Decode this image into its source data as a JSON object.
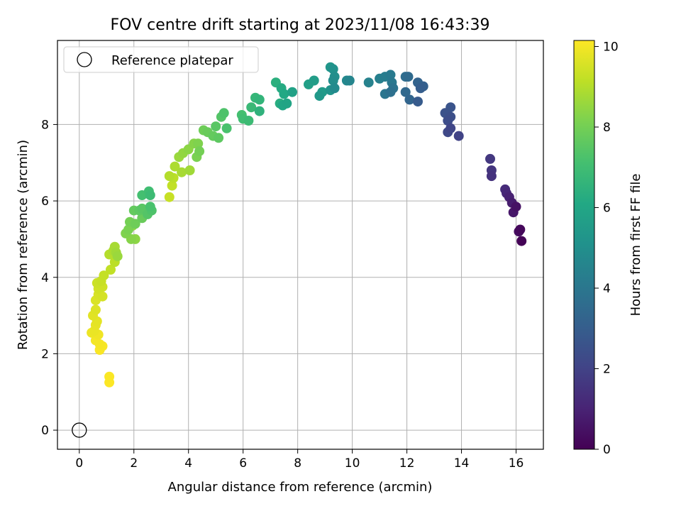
{
  "chart_data": {
    "type": "scatter",
    "title": "FOV centre drift starting at 2023/11/08 16:43:39",
    "xlabel": "Angular distance from reference (arcmin)",
    "ylabel": "Rotation from reference (arcmin)",
    "xlim": [
      -0.8,
      17.0
    ],
    "ylim": [
      -0.5,
      10.2
    ],
    "xticks": [
      0,
      2,
      4,
      6,
      8,
      10,
      12,
      14,
      16
    ],
    "yticks": [
      0,
      2,
      4,
      6,
      8
    ],
    "grid": true,
    "legend": {
      "placement": "top-left",
      "entries": [
        "Reference platepar"
      ]
    },
    "reference_point": {
      "x": 0,
      "y": 0,
      "label": "Reference platepar"
    },
    "colorbar": {
      "label": "Hours from first FF file",
      "range": [
        0,
        10.15
      ],
      "ticks": [
        0,
        2,
        4,
        6,
        8,
        10
      ],
      "colormap": "viridis"
    },
    "series": [
      {
        "values": [
          [
            16.2,
            4.95,
            0.05
          ],
          [
            16.15,
            5.25,
            0.2
          ],
          [
            16.1,
            5.2,
            0.35
          ],
          [
            16.0,
            5.85,
            0.5
          ],
          [
            15.9,
            5.7,
            0.65
          ],
          [
            15.85,
            5.95,
            0.8
          ],
          [
            15.75,
            6.1,
            0.95
          ],
          [
            15.65,
            6.2,
            1.1
          ],
          [
            15.6,
            6.3,
            1.25
          ],
          [
            15.1,
            6.65,
            1.45
          ],
          [
            15.1,
            6.8,
            1.55
          ],
          [
            15.05,
            7.1,
            1.65
          ],
          [
            13.9,
            7.7,
            2.0
          ],
          [
            13.6,
            7.9,
            2.1
          ],
          [
            13.5,
            7.8,
            2.2
          ],
          [
            13.5,
            8.1,
            2.35
          ],
          [
            13.6,
            8.2,
            2.45
          ],
          [
            13.4,
            8.3,
            2.55
          ],
          [
            13.6,
            8.45,
            2.65
          ],
          [
            12.4,
            8.6,
            2.9
          ],
          [
            12.5,
            8.95,
            3.0
          ],
          [
            12.6,
            9.0,
            3.1
          ],
          [
            12.4,
            9.1,
            3.2
          ],
          [
            12.1,
            8.65,
            3.3
          ],
          [
            11.95,
            8.85,
            3.4
          ],
          [
            12.05,
            9.25,
            3.5
          ],
          [
            11.95,
            9.25,
            3.6
          ],
          [
            11.4,
            8.85,
            3.75
          ],
          [
            11.5,
            8.95,
            3.85
          ],
          [
            11.2,
            8.8,
            3.95
          ],
          [
            11.45,
            9.1,
            4.05
          ],
          [
            11.4,
            9.3,
            4.15
          ],
          [
            11.2,
            9.25,
            4.25
          ],
          [
            11.0,
            9.2,
            4.35
          ],
          [
            10.6,
            9.1,
            4.45
          ],
          [
            9.9,
            9.15,
            4.6
          ],
          [
            9.8,
            9.15,
            4.7
          ],
          [
            9.35,
            8.95,
            4.8
          ],
          [
            9.3,
            9.15,
            4.9
          ],
          [
            9.35,
            9.25,
            5.0
          ],
          [
            9.3,
            9.45,
            5.1
          ],
          [
            9.2,
            8.9,
            5.2
          ],
          [
            9.2,
            9.5,
            5.3
          ],
          [
            8.8,
            8.75,
            5.4
          ],
          [
            8.9,
            8.85,
            5.5
          ],
          [
            8.6,
            9.15,
            5.6
          ],
          [
            8.4,
            9.05,
            5.7
          ],
          [
            7.8,
            8.85,
            5.8
          ],
          [
            7.6,
            8.55,
            5.9
          ],
          [
            7.45,
            8.5,
            6.0
          ],
          [
            7.5,
            8.8,
            6.1
          ],
          [
            7.4,
            8.95,
            6.2
          ],
          [
            7.35,
            8.55,
            6.3
          ],
          [
            7.2,
            9.1,
            6.4
          ],
          [
            6.6,
            8.35,
            6.5
          ],
          [
            6.6,
            8.65,
            6.6
          ],
          [
            6.45,
            8.7,
            6.7
          ],
          [
            6.3,
            8.45,
            6.8
          ],
          [
            6.2,
            8.1,
            6.9
          ],
          [
            6.0,
            8.15,
            7.0
          ],
          [
            5.95,
            8.25,
            7.1
          ],
          [
            5.4,
            7.9,
            7.2
          ],
          [
            5.3,
            8.3,
            7.3
          ],
          [
            5.2,
            8.2,
            7.4
          ],
          [
            5.0,
            7.95,
            7.5
          ],
          [
            5.1,
            7.65,
            7.6
          ],
          [
            4.9,
            7.7,
            7.7
          ],
          [
            4.7,
            7.8,
            7.8
          ],
          [
            4.55,
            7.85,
            7.9
          ],
          [
            4.4,
            7.3,
            8.0
          ],
          [
            4.3,
            7.15,
            8.1
          ],
          [
            4.35,
            7.5,
            8.2
          ],
          [
            4.2,
            7.5,
            8.3
          ],
          [
            4.0,
            7.35,
            8.4
          ],
          [
            3.8,
            7.25,
            8.5
          ],
          [
            3.65,
            7.15,
            8.6
          ],
          [
            4.05,
            6.8,
            8.7
          ],
          [
            3.75,
            6.75,
            8.8
          ],
          [
            3.5,
            6.9,
            8.9
          ],
          [
            3.3,
            6.65,
            9.0
          ],
          [
            3.45,
            6.6,
            9.1
          ],
          [
            3.4,
            6.4,
            9.2
          ],
          [
            3.3,
            6.1,
            9.3
          ]
        ],
        "values_note_suppressed": ""
      }
    ],
    "extra_points": [
      [
        2.6,
        6.15,
        6.9
      ],
      [
        2.55,
        6.25,
        7.0
      ],
      [
        2.3,
        6.15,
        7.1
      ],
      [
        2.6,
        5.85,
        7.2
      ],
      [
        2.65,
        5.75,
        7.3
      ],
      [
        2.5,
        5.65,
        7.4
      ],
      [
        2.3,
        5.8,
        7.5
      ],
      [
        2.2,
        5.75,
        7.6
      ],
      [
        2.0,
        5.75,
        7.7
      ],
      [
        2.3,
        5.55,
        7.8
      ],
      [
        2.05,
        5.4,
        7.9
      ],
      [
        1.85,
        5.45,
        8.0
      ],
      [
        1.8,
        5.25,
        8.1
      ],
      [
        1.7,
        5.15,
        8.2
      ],
      [
        1.9,
        5.0,
        8.3
      ],
      [
        2.05,
        5.0,
        8.4
      ],
      [
        1.95,
        5.35,
        8.5
      ],
      [
        1.4,
        4.55,
        8.6
      ],
      [
        1.35,
        4.65,
        8.7
      ],
      [
        1.3,
        4.8,
        8.8
      ],
      [
        1.25,
        4.7,
        8.9
      ],
      [
        1.1,
        4.6,
        9.0
      ],
      [
        1.3,
        4.4,
        9.1
      ],
      [
        1.15,
        4.2,
        9.2
      ],
      [
        0.9,
        4.05,
        9.25
      ],
      [
        0.8,
        3.9,
        9.3
      ],
      [
        0.65,
        3.85,
        9.35
      ],
      [
        0.85,
        3.75,
        9.4
      ],
      [
        0.7,
        3.7,
        9.45
      ],
      [
        0.85,
        3.5,
        9.5
      ],
      [
        0.7,
        3.55,
        9.55
      ],
      [
        0.6,
        3.4,
        9.6
      ],
      [
        0.6,
        3.15,
        9.65
      ],
      [
        0.5,
        3.0,
        9.7
      ],
      [
        0.65,
        2.85,
        9.75
      ],
      [
        0.6,
        2.75,
        9.8
      ],
      [
        0.55,
        2.6,
        9.85
      ],
      [
        0.45,
        2.55,
        9.9
      ],
      [
        0.7,
        2.5,
        9.95
      ],
      [
        0.6,
        2.35,
        10.0
      ],
      [
        0.75,
        2.25,
        10.02
      ],
      [
        0.85,
        2.2,
        10.05
      ],
      [
        0.75,
        2.1,
        10.08
      ],
      [
        1.1,
        1.4,
        10.1
      ],
      [
        1.1,
        1.25,
        10.13
      ]
    ]
  }
}
